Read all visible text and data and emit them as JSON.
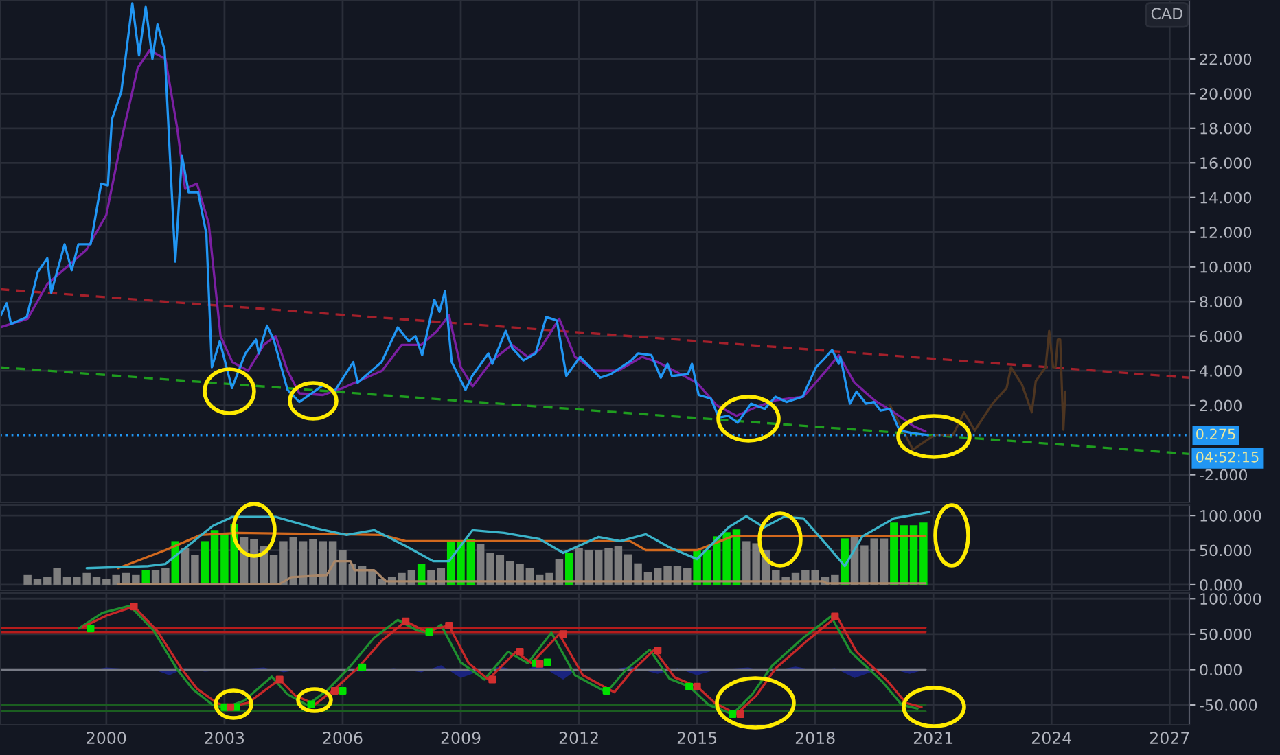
{
  "chart_data": [
    {
      "type": "line",
      "xlim": [
        1997.3,
        2027.5
      ],
      "ylim": [
        -3.6,
        25.4
      ],
      "grid": true,
      "tick_labels": "y",
      "xticks": [
        2000,
        2003,
        2006,
        2009,
        2012,
        2015,
        2018,
        2021,
        2024,
        2027
      ],
      "yticks": [
        {
          "value": -2,
          "label": "-2.000"
        },
        {
          "value": 2,
          "label": "2.000"
        },
        {
          "value": 4,
          "label": "4.000"
        },
        {
          "value": 6,
          "label": "6.000"
        },
        {
          "value": 8,
          "label": "8.000"
        },
        {
          "value": 10,
          "label": "10.000"
        },
        {
          "value": 12,
          "label": "12.000"
        },
        {
          "value": 14,
          "label": "14.000"
        },
        {
          "value": 16,
          "label": "16.000"
        },
        {
          "value": 18,
          "label": "18.000"
        },
        {
          "value": 20,
          "label": "20.000"
        },
        {
          "value": 22,
          "label": "22.000"
        }
      ],
      "annotations": [
        "CAD",
        "04:52:15"
      ],
      "ref_lines": [
        {
          "axis": "y",
          "value": 0.275,
          "label": "0.275",
          "color": "#2196f3",
          "line_style": "dotted"
        }
      ],
      "series": [
        {
          "color": "#1f9d1f",
          "line_style": "dashed",
          "x": [
            1997.3,
            2027.5
          ],
          "values": [
            4.2,
            -0.8
          ]
        },
        {
          "color": "#a3202b",
          "line_style": "dashed",
          "x": [
            1997.3,
            2027.5
          ],
          "values": [
            8.7,
            3.6
          ]
        },
        {
          "color": "#4d3521",
          "x": [
            2019.9,
            2020.48,
            2021.03,
            2021.5,
            2021.78,
            2022.05,
            2022.5,
            2022.86,
            2022.97,
            2023.25,
            2023.5,
            2023.6,
            2023.85,
            2023.94,
            2024.04,
            2024.1,
            2024.16,
            2024.22,
            2024.3,
            2024.35
          ],
          "values": [
            2.0,
            -0.55,
            0.3,
            0.3,
            1.6,
            0.55,
            2.1,
            3.0,
            4.2,
            3.2,
            1.6,
            3.4,
            4.2,
            6.3,
            4.2,
            4.2,
            5.8,
            5.8,
            0.6,
            2.8
          ]
        },
        {
          "color": "#7b1fa2",
          "x": [
            1997.3,
            1998.0,
            1998.5,
            1999.0,
            1999.5,
            2000.0,
            2000.4,
            2000.8,
            2001.1,
            2001.5,
            2001.8,
            2002.0,
            2002.3,
            2002.6,
            2002.9,
            2003.2,
            2003.6,
            2004.0,
            2004.3,
            2004.6,
            2004.9,
            2005.5,
            2006.0,
            2006.5,
            2007.0,
            2007.5,
            2008.0,
            2008.4,
            2008.7,
            2009.0,
            2009.3,
            2009.8,
            2010.3,
            2010.7,
            2011.0,
            2011.5,
            2011.9,
            2012.4,
            2013.0,
            2013.6,
            2014.0,
            2014.5,
            2015.0,
            2015.5,
            2016.0,
            2016.5,
            2017.0,
            2017.7,
            2018.2,
            2018.6,
            2019.0,
            2019.5,
            2020.0,
            2020.5,
            2020.8
          ],
          "values": [
            6.5,
            7.0,
            9.0,
            10.0,
            11.0,
            13.0,
            17.5,
            21.5,
            22.5,
            22.0,
            18.0,
            14.5,
            14.8,
            12.5,
            6.0,
            4.5,
            4.0,
            5.5,
            6.0,
            4.0,
            2.7,
            2.6,
            3.0,
            3.5,
            4.0,
            5.5,
            5.5,
            6.3,
            7.2,
            4.2,
            3.1,
            4.6,
            5.5,
            4.8,
            5.2,
            7.0,
            4.8,
            4.0,
            4.0,
            4.8,
            4.5,
            3.9,
            3.3,
            2.0,
            1.4,
            1.9,
            2.3,
            2.5,
            3.8,
            4.9,
            3.3,
            2.3,
            1.6,
            0.8,
            0.5
          ]
        },
        {
          "color": "#2196f3",
          "x": [
            1997.3,
            1997.47,
            1997.58,
            1997.98,
            1998.26,
            1998.5,
            1998.6,
            1998.94,
            1999.12,
            1999.29,
            1999.6,
            1999.87,
            2000.04,
            2000.14,
            2000.38,
            2000.66,
            2000.83,
            2001.0,
            2001.17,
            2001.3,
            2001.48,
            2001.75,
            2001.92,
            2002.09,
            2002.33,
            2002.54,
            2002.68,
            2002.88,
            2003.19,
            2003.53,
            2003.8,
            2003.87,
            2004.08,
            2004.25,
            2004.6,
            2004.9,
            2005.28,
            2005.52,
            2005.79,
            2006.27,
            2006.38,
            2006.99,
            2007.4,
            2007.68,
            2007.85,
            2008.02,
            2008.33,
            2008.46,
            2008.6,
            2008.77,
            2009.12,
            2009.29,
            2009.7,
            2009.8,
            2010.14,
            2010.31,
            2010.59,
            2010.9,
            2011.17,
            2011.44,
            2011.68,
            2012.03,
            2012.54,
            2012.81,
            2013.33,
            2013.5,
            2013.84,
            2014.08,
            2014.25,
            2014.36,
            2014.77,
            2014.87,
            2015.04,
            2015.35,
            2015.55,
            2015.79,
            2016.03,
            2016.37,
            2016.72,
            2016.99,
            2017.27,
            2017.68,
            2018.02,
            2018.19,
            2018.43,
            2018.6,
            2018.64,
            2018.88,
            2019.05,
            2019.29,
            2019.49,
            2019.66,
            2019.9,
            2020.14,
            2020.48,
            2020.83
          ],
          "values": [
            7.1,
            7.9,
            6.7,
            7.1,
            9.7,
            10.5,
            8.5,
            11.3,
            9.8,
            11.3,
            11.3,
            14.8,
            14.7,
            18.5,
            20.1,
            25.2,
            22.2,
            25.0,
            22.0,
            24.0,
            22.5,
            10.3,
            16.4,
            14.3,
            14.3,
            11.9,
            4.2,
            5.7,
            3.0,
            5.0,
            5.8,
            5.0,
            6.6,
            5.8,
            2.9,
            2.2,
            2.8,
            3.2,
            2.8,
            4.5,
            3.3,
            4.5,
            6.5,
            5.7,
            6.0,
            4.9,
            8.1,
            7.4,
            8.6,
            4.5,
            2.9,
            3.7,
            5.0,
            4.4,
            6.3,
            5.3,
            4.6,
            5.0,
            7.1,
            6.9,
            3.7,
            4.8,
            3.6,
            3.8,
            4.6,
            5.0,
            4.9,
            3.6,
            4.4,
            3.7,
            3.8,
            4.4,
            2.6,
            2.4,
            1.3,
            1.4,
            1.0,
            2.1,
            1.8,
            2.5,
            2.2,
            2.5,
            4.2,
            4.6,
            5.2,
            4.4,
            4.8,
            2.1,
            2.8,
            2.1,
            2.2,
            1.7,
            1.8,
            0.55,
            0.4,
            0.3
          ]
        }
      ]
    },
    {
      "type": "bar",
      "xlim": [
        1997.3,
        2027.5
      ],
      "ylim": [
        -8,
        115
      ],
      "grid": true,
      "tick_labels": "y",
      "xticks": [
        2000,
        2003,
        2006,
        2009,
        2012,
        2015,
        2018,
        2021,
        2024,
        2027
      ],
      "yticks": [
        {
          "value": 0,
          "label": "0.000"
        },
        {
          "value": 50,
          "label": "50.000"
        },
        {
          "value": 100,
          "label": "100.000"
        }
      ],
      "series": [
        {
          "x": [
            1998.0,
            1998.25,
            1998.5,
            1998.75,
            1999.0,
            1999.25,
            1999.5,
            1999.75,
            2000.0,
            2000.25,
            2000.5,
            2000.75,
            2001.0,
            2001.25,
            2001.5,
            2001.75,
            2002.0,
            2002.25,
            2002.5,
            2002.75,
            2003.0,
            2003.25,
            2003.5,
            2003.75,
            2004.0,
            2004.25,
            2004.5,
            2004.75,
            2005.0,
            2005.25,
            2005.5,
            2005.75,
            2006.0,
            2006.25,
            2006.5,
            2006.75,
            2007.0,
            2007.25,
            2007.5,
            2007.75,
            2008.0,
            2008.25,
            2008.5,
            2008.75,
            2009.0,
            2009.25,
            2009.5,
            2009.75,
            2010.0,
            2010.25,
            2010.5,
            2010.75,
            2011.0,
            2011.25,
            2011.5,
            2011.75,
            2012.0,
            2012.25,
            2012.5,
            2012.75,
            2013.0,
            2013.25,
            2013.5,
            2013.75,
            2014.0,
            2014.25,
            2014.5,
            2014.75,
            2015.0,
            2015.25,
            2015.5,
            2015.75,
            2016.0,
            2016.25,
            2016.5,
            2016.75,
            2017.0,
            2017.25,
            2017.5,
            2017.75,
            2018.0,
            2018.25,
            2018.5,
            2018.75,
            2019.0,
            2019.25,
            2019.5,
            2019.75,
            2020.0,
            2020.25,
            2020.5,
            2020.75
          ],
          "values": [
            14,
            8,
            11,
            24,
            11,
            11,
            17,
            11,
            8,
            14,
            17,
            14,
            21,
            21,
            24,
            63,
            53,
            43,
            63,
            79,
            75,
            88,
            69,
            66,
            56,
            43,
            63,
            69,
            63,
            66,
            63,
            63,
            50,
            30,
            27,
            21,
            8,
            11,
            17,
            21,
            30,
            21,
            24,
            63,
            63,
            66,
            59,
            46,
            43,
            34,
            30,
            24,
            14,
            17,
            37,
            46,
            53,
            50,
            50,
            53,
            56,
            44,
            31,
            18,
            24,
            27,
            27,
            24,
            50,
            50,
            70,
            76,
            80,
            63,
            60,
            50,
            21,
            11,
            17,
            21,
            21,
            11,
            14,
            67,
            70,
            57,
            67,
            67,
            90,
            86,
            86,
            90
          ],
          "colors": [
            "#7e7e7e",
            "#7e7e7e",
            "#7e7e7e",
            "#7e7e7e",
            "#7e7e7e",
            "#7e7e7e",
            "#7e7e7e",
            "#7e7e7e",
            "#7e7e7e",
            "#7e7e7e",
            "#7e7e7e",
            "#7e7e7e",
            "#00e000",
            "#7e7e7e",
            "#7e7e7e",
            "#00e000",
            "#7e7e7e",
            "#7e7e7e",
            "#00e000",
            "#00e000",
            "#00e000",
            "#00e000",
            "#7e7e7e",
            "#7e7e7e",
            "#7e7e7e",
            "#7e7e7e",
            "#7e7e7e",
            "#7e7e7e",
            "#7e7e7e",
            "#7e7e7e",
            "#7e7e7e",
            "#7e7e7e",
            "#7e7e7e",
            "#7e7e7e",
            "#7e7e7e",
            "#7e7e7e",
            "#7e7e7e",
            "#7e7e7e",
            "#7e7e7e",
            "#7e7e7e",
            "#00e000",
            "#7e7e7e",
            "#7e7e7e",
            "#00e000",
            "#00e000",
            "#00e000",
            "#7e7e7e",
            "#7e7e7e",
            "#7e7e7e",
            "#7e7e7e",
            "#7e7e7e",
            "#7e7e7e",
            "#7e7e7e",
            "#7e7e7e",
            "#7e7e7e",
            "#00e000",
            "#7e7e7e",
            "#7e7e7e",
            "#7e7e7e",
            "#7e7e7e",
            "#7e7e7e",
            "#7e7e7e",
            "#7e7e7e",
            "#7e7e7e",
            "#7e7e7e",
            "#7e7e7e",
            "#7e7e7e",
            "#7e7e7e",
            "#00e000",
            "#00e000",
            "#00e000",
            "#00e000",
            "#00e000",
            "#7e7e7e",
            "#7e7e7e",
            "#7e7e7e",
            "#7e7e7e",
            "#7e7e7e",
            "#7e7e7e",
            "#7e7e7e",
            "#7e7e7e",
            "#7e7e7e",
            "#7e7e7e",
            "#00e000",
            "#7e7e7e",
            "#7e7e7e",
            "#7e7e7e",
            "#7e7e7e",
            "#00e000",
            "#00e000",
            "#00e000",
            "#00e000"
          ]
        },
        {
          "type": "line",
          "color": "#a8876a",
          "x": [
            2000.3,
            2004.4,
            2004.7,
            2005.6,
            2005.8,
            2006.2,
            2006.3,
            2006.8,
            2007.1,
            2018.2,
            2018.3,
            2020.8
          ],
          "values": [
            1,
            1,
            11,
            14,
            34,
            34,
            21,
            21,
            5,
            5,
            2,
            2
          ]
        },
        {
          "type": "line",
          "color": "#d2691e",
          "x": [
            2000.3,
            2001.5,
            2002.4,
            2003.35,
            2007.0,
            2007.6,
            2013.3,
            2013.7,
            2015.0,
            2015.9,
            2020.8
          ],
          "values": [
            24,
            50,
            72,
            75,
            72,
            63,
            63,
            50,
            50,
            70,
            70
          ]
        },
        {
          "type": "line",
          "color": "#3bb3c9",
          "x": [
            1999.5,
            2001.07,
            2001.5,
            2002.7,
            2003.2,
            2004.3,
            2005.3,
            2006.1,
            2006.8,
            2007.6,
            2008.3,
            2008.7,
            2009.3,
            2010.1,
            2011.0,
            2011.6,
            2012.5,
            2013.05,
            2013.7,
            2014.3,
            2015.0,
            2015.8,
            2016.25,
            2016.7,
            2017.2,
            2017.7,
            2018.3,
            2018.75,
            2019.2,
            2020.0,
            2020.9
          ],
          "values": [
            24,
            27,
            30,
            85,
            98,
            98,
            82,
            72,
            79,
            56,
            34,
            34,
            79,
            75,
            66,
            46,
            69,
            63,
            73,
            54,
            37,
            83,
            99,
            83,
            98,
            96,
            57,
            27,
            70,
            96,
            105
          ]
        }
      ]
    },
    {
      "type": "line",
      "xlim": [
        1997.3,
        2027.5
      ],
      "ylim": [
        -78,
        108
      ],
      "grid": true,
      "xticks": [
        2000,
        2003,
        2006,
        2009,
        2012,
        2015,
        2018,
        2021,
        2024,
        2027
      ],
      "yticks": [
        {
          "value": -50,
          "label": "-50.000"
        },
        {
          "value": 0,
          "label": "0.000"
        },
        {
          "value": 50,
          "label": "50.000"
        },
        {
          "value": 100,
          "label": "100.000"
        }
      ],
      "series": [
        {
          "color": "#b71c1c",
          "x": [
            1997.3,
            2020.8
          ],
          "values": [
            59,
            59
          ]
        },
        {
          "color": "#b71c1c",
          "x": [
            1997.3,
            2020.8
          ],
          "values": [
            53,
            53
          ]
        },
        {
          "color": "#1b5e20",
          "x": [
            1997.3,
            2020.8
          ],
          "values": [
            -50,
            -50
          ]
        },
        {
          "color": "#1b5e20",
          "x": [
            1997.3,
            2020.8
          ],
          "values": [
            -59,
            -59
          ]
        },
        {
          "color": "#787b86",
          "x": [
            1997.3,
            2020.8
          ],
          "values": [
            0,
            0
          ]
        },
        {
          "type": "area",
          "color": "#1a237e",
          "x": [
            1999.7,
            2000.0,
            2000.5,
            2001.3,
            2001.6,
            2002.0,
            2002.5,
            2003.0,
            2004.0,
            2004.5,
            2005.0,
            2006.0,
            2006.5,
            2007.3,
            2008.0,
            2008.5,
            2009.0,
            2009.4,
            2010.0,
            2010.5,
            2011.0,
            2011.6,
            2012.0,
            2012.6,
            2013.3,
            2014.0,
            2014.5,
            2015.0,
            2015.5,
            2016.3,
            2016.8,
            2017.5,
            2018.0,
            2018.5,
            2019.0,
            2019.5,
            2020.0,
            2020.4,
            2020.8
          ],
          "values": [
            0,
            3,
            1,
            -2,
            -8,
            2,
            -3,
            -1,
            3,
            -4,
            1,
            -2,
            -3,
            2,
            -4,
            6,
            -12,
            -4,
            4,
            -2,
            6,
            -14,
            2,
            -2,
            4,
            -6,
            2,
            -8,
            0,
            3,
            -3,
            4,
            -1,
            2,
            -12,
            -2,
            0,
            -6,
            0
          ]
        },
        {
          "color": "#1f8f2f",
          "x": [
            1999.3,
            1999.9,
            2000.6,
            2001.2,
            2001.8,
            2002.2,
            2002.7,
            2003.0,
            2003.5,
            2004.2,
            2004.6,
            2005.1,
            2005.6,
            2006.2,
            2006.8,
            2007.4,
            2007.9,
            2008.2,
            2008.5,
            2009.0,
            2009.6,
            2010.2,
            2010.7,
            2011.3,
            2011.9,
            2012.7,
            2013.2,
            2013.8,
            2014.3,
            2014.8,
            2015.3,
            2015.9,
            2016.4,
            2016.9,
            2017.7,
            2018.4,
            2018.9,
            2019.7,
            2020.2,
            2020.6
          ],
          "values": [
            58,
            80,
            90,
            55,
            0,
            -28,
            -50,
            -54,
            -44,
            -10,
            -35,
            -50,
            -30,
            5,
            45,
            70,
            55,
            52,
            63,
            10,
            -14,
            25,
            9,
            52,
            -8,
            -32,
            0,
            28,
            -13,
            -24,
            -50,
            -63,
            -35,
            5,
            45,
            75,
            25,
            -17,
            -50,
            -55
          ]
        },
        {
          "color": "#c62828",
          "x": [
            1999.4,
            2000.0,
            2000.7,
            2001.3,
            2001.9,
            2002.3,
            2002.8,
            2003.1,
            2003.6,
            2004.4,
            2004.8,
            2005.3,
            2005.75,
            2006.4,
            2007.0,
            2007.6,
            2008.1,
            2008.7,
            2009.2,
            2009.7,
            2010.4,
            2010.8,
            2011.5,
            2012.1,
            2012.9,
            2013.3,
            2013.91,
            2014.43,
            2015.0,
            2015.45,
            2016.0,
            2016.5,
            2017.0,
            2017.8,
            2018.55,
            2019.05,
            2019.85,
            2020.3,
            2020.7
          ],
          "values": [
            60,
            76,
            89,
            54,
            2,
            -27,
            -47,
            -53,
            -47,
            -14,
            -37,
            -49,
            -30,
            3,
            41,
            68,
            54,
            62,
            9,
            -14,
            25,
            9,
            50,
            -8,
            -32,
            -5,
            28,
            -11,
            -24,
            -47,
            -63,
            -37,
            2,
            41,
            75,
            25,
            -17,
            -47,
            -53
          ]
        },
        {
          "type": "scatter",
          "color": "#00e000",
          "marker": "square",
          "x": [
            1999.6,
            2003.0,
            2003.3,
            2005.2,
            2006.0,
            2006.5,
            2008.2,
            2010.9,
            2011.2,
            2012.7,
            2014.8,
            2015.9
          ],
          "values": [
            58,
            -53,
            -53,
            -49,
            -30,
            3,
            53,
            9,
            10,
            -30,
            -24,
            -63
          ]
        },
        {
          "type": "scatter",
          "color": "#d32f2f",
          "marker": "square",
          "x": [
            2000.7,
            2003.15,
            2004.4,
            2005.8,
            2007.6,
            2008.7,
            2009.8,
            2010.5,
            2011.0,
            2011.6,
            2014.0,
            2015.0,
            2016.1,
            2018.5
          ],
          "values": [
            89,
            -53,
            -14,
            -30,
            68,
            62,
            -14,
            25,
            8,
            50,
            27,
            -24,
            -63,
            75
          ]
        }
      ]
    }
  ]
}
